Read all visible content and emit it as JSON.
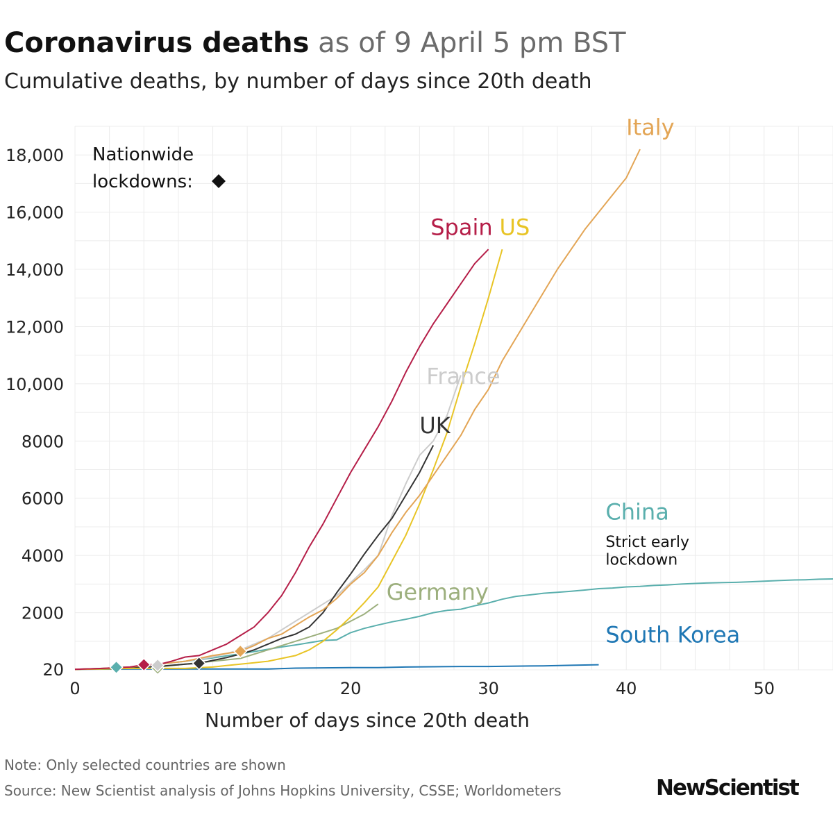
{
  "header": {
    "title_main": "Coronavirus deaths",
    "title_sub": "as of 9 April 5 pm BST",
    "subtitle": "Cumulative deaths, by number of days since 20th death"
  },
  "footer": {
    "note": "Note: Only selected countries are shown",
    "source": "Source: New Scientist analysis of Johns Hopkins University, CSSE; Worldometers",
    "logo": "NewScientist"
  },
  "chart_data": {
    "type": "line",
    "xlabel": "Number of days since 20th death",
    "ylabel": "",
    "xlim": [
      0,
      55
    ],
    "ylim": [
      0,
      19000
    ],
    "x_ticks": [
      0,
      10,
      20,
      30,
      40,
      50
    ],
    "y_ticks": [
      20,
      2000,
      4000,
      6000,
      8000,
      10000,
      12000,
      14000,
      16000,
      18000
    ],
    "y_tick_labels": [
      "20",
      "2000",
      "4000",
      "6000",
      "8000",
      "10,000",
      "12,000",
      "14,000",
      "16,000",
      "18,000"
    ],
    "grid": true,
    "legend_note": {
      "line1": "Nationwide",
      "line2": "lockdowns:",
      "marker_color": "#111111"
    },
    "annotations": [
      {
        "text": "Strict early",
        "x": 38.5,
        "y": 4300
      },
      {
        "text": "lockdown",
        "x": 38.5,
        "y": 3680
      }
    ],
    "series": [
      {
        "name": "China",
        "color": "#5aafad",
        "label_x": 38.5,
        "label_y": 5250,
        "x": [
          0,
          1,
          2,
          3,
          4,
          5,
          6,
          7,
          8,
          9,
          10,
          11,
          12,
          13,
          14,
          15,
          16,
          17,
          18,
          19,
          20,
          21,
          22,
          23,
          24,
          25,
          26,
          27,
          28,
          29,
          30,
          31,
          32,
          33,
          34,
          35,
          36,
          37,
          38,
          39,
          40,
          41,
          42,
          43,
          44,
          45,
          46,
          47,
          48,
          49,
          50,
          51,
          52,
          53,
          54,
          55
        ],
        "values": [
          20,
          30,
          50,
          80,
          100,
          150,
          200,
          250,
          300,
          360,
          420,
          490,
          560,
          640,
          720,
          800,
          870,
          950,
          1030,
          1050,
          1300,
          1450,
          1570,
          1680,
          1770,
          1870,
          2000,
          2080,
          2120,
          2240,
          2340,
          2470,
          2570,
          2620,
          2680,
          2710,
          2750,
          2790,
          2840,
          2860,
          2900,
          2920,
          2950,
          2970,
          3000,
          3020,
          3040,
          3050,
          3060,
          3080,
          3100,
          3120,
          3140,
          3150,
          3170,
          3180
        ],
        "lockdown_day": 3,
        "lockdown_value": 90
      },
      {
        "name": "South Korea",
        "color": "#1f77b4",
        "label_x": 38.5,
        "label_y": 960,
        "x": [
          0,
          2,
          4,
          6,
          8,
          10,
          12,
          14,
          16,
          18,
          20,
          22,
          24,
          26,
          28,
          30,
          32,
          34,
          36,
          38
        ],
        "values": [
          20,
          25,
          30,
          30,
          30,
          30,
          30,
          30,
          60,
          70,
          80,
          80,
          100,
          110,
          120,
          120,
          130,
          140,
          160,
          180
        ]
      },
      {
        "name": "Germany",
        "color": "#9caf7d",
        "label_x": 22.6,
        "label_y": 2450,
        "x": [
          0,
          2,
          4,
          6,
          8,
          10,
          12,
          14,
          16,
          18,
          19,
          20,
          21,
          22
        ],
        "values": [
          20,
          40,
          60,
          100,
          200,
          300,
          400,
          700,
          1000,
          1300,
          1450,
          1700,
          1950,
          2300
        ],
        "lockdown_day": 6,
        "lockdown_value": 60
      },
      {
        "name": "France",
        "color": "#cccccc",
        "label_x": 25.5,
        "label_y": 10000,
        "x": [
          0,
          2,
          4,
          6,
          8,
          10,
          12,
          14,
          16,
          17,
          18,
          19,
          20,
          21,
          22,
          23,
          24,
          25,
          26,
          27,
          28
        ],
        "values": [
          20,
          50,
          100,
          200,
          300,
          450,
          700,
          1100,
          1700,
          2000,
          2300,
          2600,
          3050,
          3500,
          4000,
          5400,
          6500,
          7500,
          8000,
          8900,
          10300
        ],
        "lockdown_day": 6,
        "lockdown_value": 160
      },
      {
        "name": "UK",
        "color": "#333333",
        "label_x": 25.0,
        "label_y": 8280,
        "x": [
          0,
          2,
          4,
          6,
          8,
          9,
          10,
          11,
          12,
          13,
          14,
          15,
          16,
          17,
          18,
          19,
          20,
          21,
          22,
          23,
          24,
          25,
          26
        ],
        "values": [
          20,
          40,
          70,
          120,
          200,
          230,
          330,
          430,
          550,
          700,
          900,
          1100,
          1250,
          1500,
          2000,
          2700,
          3350,
          4050,
          4700,
          5300,
          6100,
          6900,
          7850
        ],
        "lockdown_day": 9,
        "lockdown_value": 230
      },
      {
        "name": "US",
        "color": "#e8c425",
        "label_x": 30.8,
        "label_y": 15200,
        "x": [
          0,
          2,
          4,
          6,
          8,
          10,
          11,
          12,
          13,
          14,
          15,
          16,
          17,
          18,
          19,
          20,
          21,
          22,
          23,
          24,
          25,
          26,
          27,
          28,
          29,
          30,
          31
        ],
        "values": [
          20,
          30,
          50,
          50,
          50,
          100,
          150,
          200,
          250,
          300,
          400,
          500,
          700,
          1000,
          1400,
          1850,
          2350,
          2900,
          3800,
          4700,
          5800,
          7000,
          8300,
          9900,
          11400,
          13000,
          14700
        ]
      },
      {
        "name": "Italy",
        "color": "#e3a555",
        "label_x": 40.0,
        "label_y": 18700,
        "x": [
          0,
          2,
          4,
          6,
          8,
          10,
          12,
          13,
          14,
          15,
          16,
          17,
          18,
          19,
          20,
          21,
          22,
          23,
          24,
          25,
          26,
          27,
          28,
          29,
          30,
          31,
          32,
          33,
          34,
          35,
          36,
          37,
          38,
          39,
          40,
          41
        ],
        "values": [
          20,
          50,
          100,
          200,
          300,
          500,
          650,
          850,
          1100,
          1250,
          1550,
          1850,
          2100,
          2500,
          3000,
          3400,
          4000,
          4800,
          5500,
          6100,
          6800,
          7500,
          8200,
          9100,
          9800,
          10800,
          11600,
          12400,
          13200,
          14000,
          14700,
          15400,
          16000,
          16600,
          17200,
          18200
        ],
        "lockdown_day": 12,
        "lockdown_value": 650
      },
      {
        "name": "Spain",
        "color": "#b51e48",
        "label_x": 25.8,
        "label_y": 15200,
        "x": [
          0,
          2,
          4,
          5,
          6,
          7,
          8,
          9,
          10,
          11,
          12,
          13,
          14,
          15,
          16,
          17,
          18,
          19,
          20,
          21,
          22,
          23,
          24,
          25,
          26,
          27,
          28,
          29,
          30
        ],
        "values": [
          20,
          50,
          100,
          180,
          180,
          300,
          450,
          500,
          700,
          900,
          1200,
          1500,
          2000,
          2600,
          3400,
          4300,
          5100,
          6000,
          6900,
          7700,
          8500,
          9400,
          10400,
          11300,
          12100,
          12800,
          13500,
          14200,
          14700
        ],
        "lockdown_day": 5,
        "lockdown_value": 180
      }
    ]
  }
}
